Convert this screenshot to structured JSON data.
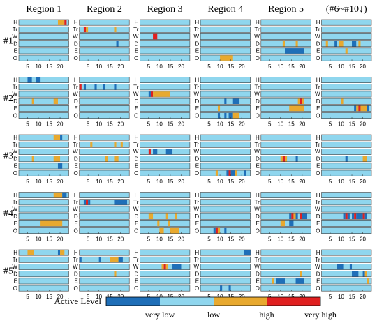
{
  "chart_data": {
    "type": "heatmap",
    "column_headers": [
      "Region 1",
      "Region 2",
      "Region 3",
      "Region 4",
      "Region 5",
      "(#6~#10↓)"
    ],
    "row_labels": [
      "#1",
      "#2",
      "#3",
      "#4",
      "#5"
    ],
    "categories": [
      "H",
      "Tr",
      "W",
      "D",
      "E",
      "O"
    ],
    "x_ticks": [
      "5",
      "10",
      "15",
      "20"
    ],
    "x_range": [
      1,
      24
    ],
    "legend": {
      "title": "Active Level",
      "labels": [
        "very low",
        "low",
        "high",
        "very high"
      ],
      "colors": {
        "very_low": "#1f6fb8",
        "low": "#8fd6ee",
        "high": "#e8a92f",
        "very_high": "#e02020"
      }
    },
    "active_segments": [
      {
        "cell": "#1/Region 1",
        "category": "H",
        "from": 19,
        "to": 22,
        "level": "high"
      },
      {
        "cell": "#1/Region 1",
        "category": "H",
        "from": 22,
        "to": 23,
        "level": "very high"
      },
      {
        "cell": "#1/Region 2",
        "category": "Tr",
        "from": 3,
        "to": 4,
        "level": "very high"
      },
      {
        "cell": "#1/Region 2",
        "category": "Tr",
        "from": 4,
        "to": 5,
        "level": "high"
      },
      {
        "cell": "#1/Region 2",
        "category": "Tr",
        "from": 17,
        "to": 18,
        "level": "high"
      },
      {
        "cell": "#1/Region 2",
        "category": "D",
        "from": 18,
        "to": 19,
        "level": "very low"
      },
      {
        "cell": "#1/Region 3",
        "category": "W",
        "from": 7,
        "to": 9,
        "level": "very high"
      },
      {
        "cell": "#1/Region 4",
        "category": "O",
        "from": 10,
        "to": 16,
        "level": "high"
      },
      {
        "cell": "#1/Region 5",
        "category": "D",
        "from": 11,
        "to": 12,
        "level": "high"
      },
      {
        "cell": "#1/Region 5",
        "category": "D",
        "from": 17,
        "to": 18,
        "level": "high"
      },
      {
        "cell": "#1/Region 5",
        "category": "E",
        "from": 12,
        "to": 21,
        "level": "very low"
      },
      {
        "cell": "#1/(#6~#10↓)",
        "category": "D",
        "from": 3,
        "to": 4,
        "level": "high"
      },
      {
        "cell": "#1/(#6~#10↓)",
        "category": "D",
        "from": 7,
        "to": 8,
        "level": "very low"
      },
      {
        "cell": "#1/(#6~#10↓)",
        "category": "D",
        "from": 9,
        "to": 11,
        "level": "high"
      },
      {
        "cell": "#1/(#6~#10↓)",
        "category": "D",
        "from": 15,
        "to": 17,
        "level": "very low"
      },
      {
        "cell": "#1/(#6~#10↓)",
        "category": "D",
        "from": 18,
        "to": 19,
        "level": "high"
      },
      {
        "cell": "#1/(#6~#10↓)",
        "category": "E",
        "from": 12,
        "to": 13,
        "level": "high"
      },
      {
        "cell": "#2/Region 1",
        "category": "H",
        "from": 5,
        "to": 7,
        "level": "very low"
      },
      {
        "cell": "#2/Region 1",
        "category": "H",
        "from": 9,
        "to": 11,
        "level": "very low"
      },
      {
        "cell": "#2/Region 1",
        "category": "D",
        "from": 7,
        "to": 8,
        "level": "high"
      },
      {
        "cell": "#2/Region 1",
        "category": "D",
        "from": 17,
        "to": 19,
        "level": "high"
      },
      {
        "cell": "#2/Region 2",
        "category": "Tr",
        "from": 1,
        "to": 2,
        "level": "very high"
      },
      {
        "cell": "#2/Region 2",
        "category": "Tr",
        "from": 3,
        "to": 4,
        "level": "very low"
      },
      {
        "cell": "#2/Region 2",
        "category": "Tr",
        "from": 8,
        "to": 9,
        "level": "very low"
      },
      {
        "cell": "#2/Region 2",
        "category": "Tr",
        "from": 12,
        "to": 13,
        "level": "very low"
      },
      {
        "cell": "#2/Region 2",
        "category": "Tr",
        "from": 17,
        "to": 18,
        "level": "very low"
      },
      {
        "cell": "#2/Region 3",
        "category": "W",
        "from": 5,
        "to": 6,
        "level": "very low"
      },
      {
        "cell": "#2/Region 3",
        "category": "W",
        "from": 6,
        "to": 7,
        "level": "very high"
      },
      {
        "cell": "#2/Region 3",
        "category": "W",
        "from": 7,
        "to": 15,
        "level": "high"
      },
      {
        "cell": "#2/Region 4",
        "category": "D",
        "from": 12,
        "to": 13,
        "level": "very low"
      },
      {
        "cell": "#2/Region 4",
        "category": "D",
        "from": 16,
        "to": 19,
        "level": "very low"
      },
      {
        "cell": "#2/Region 4",
        "category": "E",
        "from": 9,
        "to": 10,
        "level": "high"
      },
      {
        "cell": "#2/Region 4",
        "category": "O",
        "from": 9,
        "to": 10,
        "level": "very low"
      },
      {
        "cell": "#2/Region 4",
        "category": "O",
        "from": 12,
        "to": 13,
        "level": "very low"
      },
      {
        "cell": "#2/Region 4",
        "category": "O",
        "from": 14,
        "to": 16,
        "level": "very low"
      },
      {
        "cell": "#2/Region 4",
        "category": "O",
        "from": 16,
        "to": 19,
        "level": "high"
      },
      {
        "cell": "#2/Region 5",
        "category": "D",
        "from": 18,
        "to": 19,
        "level": "high"
      },
      {
        "cell": "#2/Region 5",
        "category": "D",
        "from": 19,
        "to": 20,
        "level": "very high"
      },
      {
        "cell": "#2/Region 5",
        "category": "D",
        "from": 20,
        "to": 21,
        "level": "high"
      },
      {
        "cell": "#2/Region 5",
        "category": "E",
        "from": 14,
        "to": 21,
        "level": "high"
      },
      {
        "cell": "#2/(#6~#10↓)",
        "category": "D",
        "from": 10,
        "to": 11,
        "level": "high"
      },
      {
        "cell": "#2/(#6~#10↓)",
        "category": "E",
        "from": 16,
        "to": 17,
        "level": "very low"
      },
      {
        "cell": "#2/(#6~#10↓)",
        "category": "E",
        "from": 17,
        "to": 18,
        "level": "high"
      },
      {
        "cell": "#2/(#6~#10↓)",
        "category": "E",
        "from": 18,
        "to": 19,
        "level": "very high"
      },
      {
        "cell": "#2/(#6~#10↓)",
        "category": "E",
        "from": 19,
        "to": 22,
        "level": "high"
      },
      {
        "cell": "#2/(#6~#10↓)",
        "category": "E",
        "from": 22,
        "to": 23,
        "level": "very low"
      },
      {
        "cell": "#3/Region 1",
        "category": "H",
        "from": 17,
        "to": 20,
        "level": "high"
      },
      {
        "cell": "#3/Region 1",
        "category": "H",
        "from": 20,
        "to": 21,
        "level": "very low"
      },
      {
        "cell": "#3/Region 1",
        "category": "D",
        "from": 7,
        "to": 8,
        "level": "high"
      },
      {
        "cell": "#3/Region 1",
        "category": "D",
        "from": 17,
        "to": 20,
        "level": "high"
      },
      {
        "cell": "#3/Region 1",
        "category": "E",
        "from": 19,
        "to": 21,
        "level": "very low"
      },
      {
        "cell": "#3/Region 2",
        "category": "Tr",
        "from": 6,
        "to": 7,
        "level": "high"
      },
      {
        "cell": "#3/Region 2",
        "category": "Tr",
        "from": 17,
        "to": 18,
        "level": "high"
      },
      {
        "cell": "#3/Region 2",
        "category": "Tr",
        "from": 20,
        "to": 21,
        "level": "high"
      },
      {
        "cell": "#3/Region 2",
        "category": "D",
        "from": 13,
        "to": 14,
        "level": "high"
      },
      {
        "cell": "#3/Region 2",
        "category": "D",
        "from": 17,
        "to": 19,
        "level": "high"
      },
      {
        "cell": "#3/Region 3",
        "category": "W",
        "from": 5,
        "to": 6,
        "level": "very high"
      },
      {
        "cell": "#3/Region 3",
        "category": "W",
        "from": 7,
        "to": 9,
        "level": "very low"
      },
      {
        "cell": "#3/Region 3",
        "category": "W",
        "from": 13,
        "to": 16,
        "level": "very low"
      },
      {
        "cell": "#3/Region 4",
        "category": "O",
        "from": 8,
        "to": 9,
        "level": "high"
      },
      {
        "cell": "#3/Region 4",
        "category": "O",
        "from": 13,
        "to": 14,
        "level": "very low"
      },
      {
        "cell": "#3/Region 4",
        "category": "O",
        "from": 14,
        "to": 15,
        "level": "very high"
      },
      {
        "cell": "#3/Region 4",
        "category": "O",
        "from": 15,
        "to": 17,
        "level": "very low"
      },
      {
        "cell": "#3/Region 4",
        "category": "O",
        "from": 17,
        "to": 18,
        "level": "high"
      },
      {
        "cell": "#3/Region 4",
        "category": "O",
        "from": 21,
        "to": 22,
        "level": "very low"
      },
      {
        "cell": "#3/Region 5",
        "category": "D",
        "from": 10,
        "to": 11,
        "level": "high"
      },
      {
        "cell": "#3/Region 5",
        "category": "D",
        "from": 11,
        "to": 12,
        "level": "very high"
      },
      {
        "cell": "#3/Region 5",
        "category": "D",
        "from": 12,
        "to": 13,
        "level": "high"
      },
      {
        "cell": "#3/Region 5",
        "category": "D",
        "from": 17,
        "to": 18,
        "level": "very low"
      },
      {
        "cell": "#3/(#6~#10↓)",
        "category": "D",
        "from": 12,
        "to": 13,
        "level": "very low"
      },
      {
        "cell": "#3/(#6~#10↓)",
        "category": "D",
        "from": 20,
        "to": 22,
        "level": "high"
      },
      {
        "cell": "#4/Region 1",
        "category": "H",
        "from": 17,
        "to": 21,
        "level": "high"
      },
      {
        "cell": "#4/Region 1",
        "category": "H",
        "from": 21,
        "to": 23,
        "level": "very low"
      },
      {
        "cell": "#4/Region 1",
        "category": "E",
        "from": 11,
        "to": 21,
        "level": "high"
      },
      {
        "cell": "#4/Region 2",
        "category": "Tr",
        "from": 3,
        "to": 4,
        "level": "very low"
      },
      {
        "cell": "#4/Region 2",
        "category": "Tr",
        "from": 4,
        "to": 5,
        "level": "very high"
      },
      {
        "cell": "#4/Region 2",
        "category": "Tr",
        "from": 5,
        "to": 6,
        "level": "very low"
      },
      {
        "cell": "#4/Region 2",
        "category": "Tr",
        "from": 17,
        "to": 23,
        "level": "very low"
      },
      {
        "cell": "#4/Region 3",
        "category": "D",
        "from": 5,
        "to": 7,
        "level": "high"
      },
      {
        "cell": "#4/Region 3",
        "category": "D",
        "from": 13,
        "to": 14,
        "level": "high"
      },
      {
        "cell": "#4/Region 3",
        "category": "D",
        "from": 17,
        "to": 18,
        "level": "high"
      },
      {
        "cell": "#4/Region 3",
        "category": "E",
        "from": 9,
        "to": 10,
        "level": "high"
      },
      {
        "cell": "#4/Region 3",
        "category": "E",
        "from": 14,
        "to": 15,
        "level": "high"
      },
      {
        "cell": "#4/Region 3",
        "category": "O",
        "from": 10,
        "to": 12,
        "level": "high"
      },
      {
        "cell": "#4/Region 3",
        "category": "O",
        "from": 15,
        "to": 19,
        "level": "high"
      },
      {
        "cell": "#4/Region 4",
        "category": "O",
        "from": 7,
        "to": 8,
        "level": "very low"
      },
      {
        "cell": "#4/Region 4",
        "category": "O",
        "from": 8,
        "to": 9,
        "level": "very high"
      },
      {
        "cell": "#4/Region 4",
        "category": "O",
        "from": 9,
        "to": 10,
        "level": "high"
      },
      {
        "cell": "#4/Region 4",
        "category": "O",
        "from": 12,
        "to": 13,
        "level": "very low"
      },
      {
        "cell": "#4/Region 5",
        "category": "D",
        "from": 14,
        "to": 15,
        "level": "very low"
      },
      {
        "cell": "#4/Region 5",
        "category": "D",
        "from": 15,
        "to": 16,
        "level": "very high"
      },
      {
        "cell": "#4/Region 5",
        "category": "D",
        "from": 16,
        "to": 17,
        "level": "high"
      },
      {
        "cell": "#4/Region 5",
        "category": "D",
        "from": 17,
        "to": 18,
        "level": "very low"
      },
      {
        "cell": "#4/Region 5",
        "category": "D",
        "from": 19,
        "to": 20,
        "level": "very high"
      },
      {
        "cell": "#4/Region 5",
        "category": "D",
        "from": 20,
        "to": 22,
        "level": "very low"
      },
      {
        "cell": "#4/Region 5",
        "category": "E",
        "from": 10,
        "to": 12,
        "level": "high"
      },
      {
        "cell": "#4/Region 5",
        "category": "E",
        "from": 14,
        "to": 16,
        "level": "very low"
      },
      {
        "cell": "#4/(#6~#10↓)",
        "category": "D",
        "from": 11,
        "to": 12,
        "level": "very low"
      },
      {
        "cell": "#4/(#6~#10↓)",
        "category": "D",
        "from": 12,
        "to": 13,
        "level": "very high"
      },
      {
        "cell": "#4/(#6~#10↓)",
        "category": "D",
        "from": 13,
        "to": 14,
        "level": "very low"
      },
      {
        "cell": "#4/(#6~#10↓)",
        "category": "D",
        "from": 15,
        "to": 16,
        "level": "very low"
      },
      {
        "cell": "#4/(#6~#10↓)",
        "category": "D",
        "from": 16,
        "to": 17,
        "level": "very high"
      },
      {
        "cell": "#4/(#6~#10↓)",
        "category": "D",
        "from": 17,
        "to": 20,
        "level": "very low"
      },
      {
        "cell": "#4/(#6~#10↓)",
        "category": "D",
        "from": 20,
        "to": 21,
        "level": "very high"
      },
      {
        "cell": "#4/(#6~#10↓)",
        "category": "D",
        "from": 21,
        "to": 22,
        "level": "very low"
      },
      {
        "cell": "#5/Region 1",
        "category": "H",
        "from": 5,
        "to": 8,
        "level": "high"
      },
      {
        "cell": "#5/Region 1",
        "category": "H",
        "from": 19,
        "to": 20,
        "level": "very low"
      },
      {
        "cell": "#5/Region 1",
        "category": "H",
        "from": 20,
        "to": 22,
        "level": "high"
      },
      {
        "cell": "#5/Region 2",
        "category": "Tr",
        "from": 1,
        "to": 2,
        "level": "very low"
      },
      {
        "cell": "#5/Region 2",
        "category": "Tr",
        "from": 10,
        "to": 11,
        "level": "very low"
      },
      {
        "cell": "#5/Region 2",
        "category": "Tr",
        "from": 15,
        "to": 19,
        "level": "high"
      },
      {
        "cell": "#5/Region 2",
        "category": "Tr",
        "from": 19,
        "to": 21,
        "level": "very low"
      },
      {
        "cell": "#5/Region 2",
        "category": "D",
        "from": 17,
        "to": 18,
        "level": "high"
      },
      {
        "cell": "#5/Region 3",
        "category": "W",
        "from": 11,
        "to": 12,
        "level": "high"
      },
      {
        "cell": "#5/Region 3",
        "category": "W",
        "from": 12,
        "to": 13,
        "level": "very high"
      },
      {
        "cell": "#5/Region 3",
        "category": "W",
        "from": 13,
        "to": 14,
        "level": "high"
      },
      {
        "cell": "#5/Region 3",
        "category": "W",
        "from": 16,
        "to": 20,
        "level": "very low"
      },
      {
        "cell": "#5/Region 4",
        "category": "H",
        "from": 21,
        "to": 24,
        "level": "very low"
      },
      {
        "cell": "#5/Region 4",
        "category": "O",
        "from": 10,
        "to": 11,
        "level": "very low"
      },
      {
        "cell": "#5/Region 4",
        "category": "O",
        "from": 14,
        "to": 15,
        "level": "very low"
      },
      {
        "cell": "#5/Region 5",
        "category": "D",
        "from": 19,
        "to": 20,
        "level": "high"
      },
      {
        "cell": "#5/Region 5",
        "category": "E",
        "from": 6,
        "to": 7,
        "level": "high"
      },
      {
        "cell": "#5/Region 5",
        "category": "E",
        "from": 8,
        "to": 12,
        "level": "very low"
      },
      {
        "cell": "#5/Region 5",
        "category": "E",
        "from": 17,
        "to": 21,
        "level": "very low"
      },
      {
        "cell": "#5/(#6~#10↓)",
        "category": "W",
        "from": 8,
        "to": 11,
        "level": "very low"
      },
      {
        "cell": "#5/(#6~#10↓)",
        "category": "W",
        "from": 14,
        "to": 15,
        "level": "very low"
      },
      {
        "cell": "#5/(#6~#10↓)",
        "category": "D",
        "from": 15,
        "to": 18,
        "level": "very low"
      },
      {
        "cell": "#5/(#6~#10↓)",
        "category": "D",
        "from": 20,
        "to": 21,
        "level": "very low"
      },
      {
        "cell": "#5/(#6~#10↓)",
        "category": "D",
        "from": 21,
        "to": 22,
        "level": "high"
      },
      {
        "cell": "#5/(#6~#10↓)",
        "category": "E",
        "from": 22,
        "to": 23,
        "level": "high"
      }
    ]
  }
}
